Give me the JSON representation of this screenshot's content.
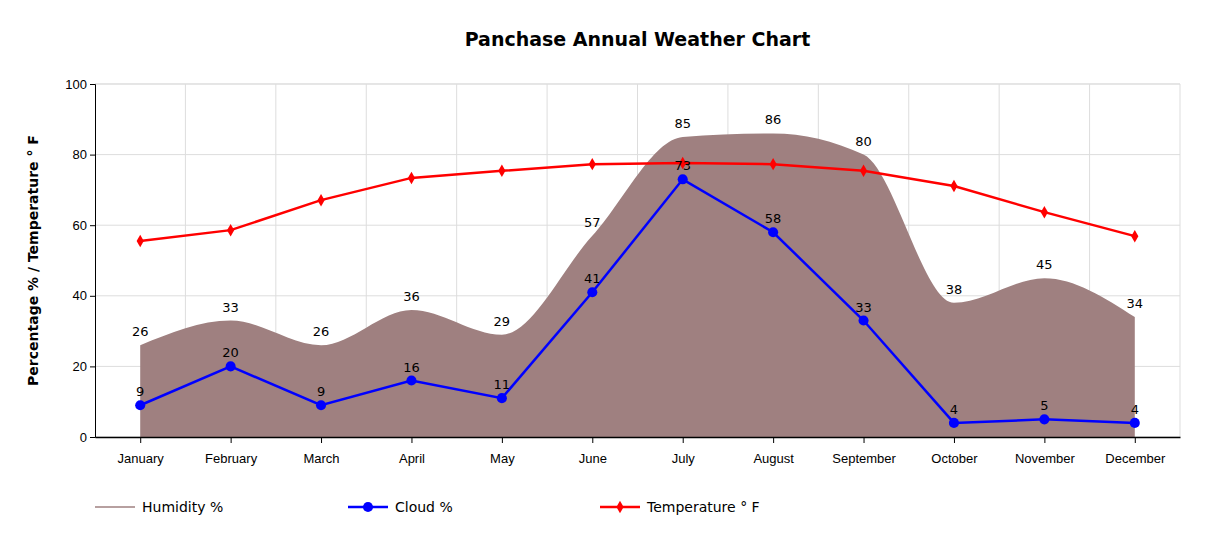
{
  "chart_data": {
    "type": "line",
    "title": "Panchase Annual Weather Chart",
    "y_label": "Percentage % / Temperature ° F",
    "categories": [
      "January",
      "February",
      "March",
      "April",
      "May",
      "June",
      "July",
      "August",
      "September",
      "October",
      "November",
      "December"
    ],
    "ylim": [
      0,
      100
    ],
    "yticks": [
      0,
      20,
      40,
      60,
      80,
      100
    ],
    "grid": true,
    "legend": "bottom",
    "series": [
      {
        "name": "Humidity %",
        "type": "area",
        "color": "#9f8080",
        "marker": "none",
        "data_labels": true,
        "values": [
          26,
          33,
          26,
          36,
          29,
          57,
          85,
          86,
          80,
          38,
          45,
          34
        ]
      },
      {
        "name": "Cloud %",
        "type": "line",
        "color": "#0000ff",
        "marker": "circle",
        "data_labels": true,
        "values": [
          9,
          20,
          9,
          16,
          11,
          41,
          73,
          58,
          33,
          4,
          5,
          4
        ]
      },
      {
        "name": "Temperature ° F",
        "type": "line",
        "color": "#ff0000",
        "marker": "diamond",
        "data_labels": false,
        "values": [
          55.5,
          58.6,
          67.1,
          73.4,
          75.4,
          77.3,
          77.6,
          77.3,
          75.4,
          71.1,
          63.7,
          56.9
        ]
      }
    ]
  }
}
